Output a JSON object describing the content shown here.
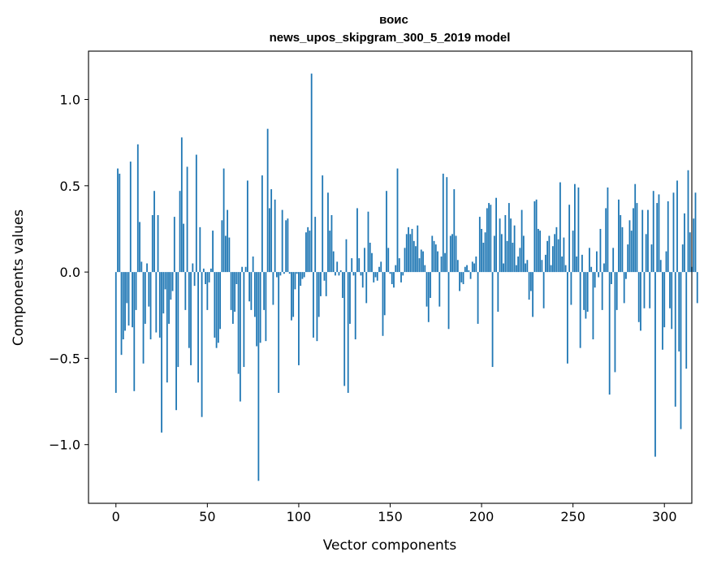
{
  "chart_data": {
    "type": "bar",
    "title": "воис",
    "subtitle": "news_upos_skipgram_300_5_2019 model",
    "xlabel": "Vector components",
    "ylabel": "Components values",
    "xlim": [
      -15,
      315
    ],
    "ylim": [
      -1.34,
      1.28
    ],
    "xticks": [
      0,
      50,
      100,
      150,
      200,
      250,
      300
    ],
    "yticks": [
      -1.0,
      -0.5,
      0.0,
      0.5,
      1.0
    ],
    "ytick_labels": [
      "−1.0",
      "−0.5",
      "0.0",
      "0.5",
      "1.0"
    ],
    "color": "#1f77b4",
    "grid": false,
    "values": [
      -0.7,
      0.6,
      0.57,
      -0.48,
      -0.39,
      -0.34,
      -0.18,
      -0.31,
      0.64,
      -0.32,
      -0.69,
      -0.22,
      0.74,
      0.29,
      0.06,
      -0.53,
      -0.3,
      0.05,
      -0.2,
      -0.39,
      0.33,
      0.47,
      -0.35,
      0.33,
      -0.38,
      -0.93,
      -0.24,
      -0.1,
      -0.64,
      -0.3,
      -0.16,
      -0.11,
      0.32,
      -0.8,
      -0.55,
      0.47,
      0.78,
      0.28,
      -0.22,
      0.61,
      -0.44,
      -0.54,
      0.05,
      -0.08,
      0.68,
      -0.64,
      0.26,
      -0.84,
      0.02,
      -0.07,
      -0.22,
      -0.06,
      0.02,
      0.24,
      -0.38,
      -0.44,
      -0.41,
      -0.33,
      0.3,
      0.6,
      0.21,
      0.36,
      0.2,
      -0.22,
      -0.3,
      -0.23,
      -0.07,
      -0.59,
      -0.75,
      0.03,
      -0.55,
      0.03,
      0.53,
      -0.17,
      -0.22,
      0.09,
      -0.26,
      -0.43,
      -1.21,
      -0.41,
      0.56,
      -0.22,
      -0.4,
      0.83,
      0.37,
      0.48,
      -0.19,
      0.42,
      -0.03,
      -0.7,
      -0.02,
      0.36,
      -0.01,
      0.3,
      0.31,
      -0.01,
      -0.28,
      -0.26,
      -0.1,
      -0.01,
      -0.54,
      -0.08,
      -0.04,
      -0.03,
      0.23,
      0.26,
      0.24,
      1.15,
      -0.38,
      0.32,
      -0.4,
      -0.26,
      -0.14,
      0.56,
      -0.05,
      -0.14,
      0.46,
      0.24,
      0.33,
      0.12,
      -0.02,
      0.06,
      -0.02,
      0.01,
      -0.15,
      -0.66,
      0.19,
      -0.7,
      -0.3,
      0.08,
      -0.02,
      -0.39,
      0.37,
      0.08,
      -0.02,
      -0.09,
      0.14,
      -0.18,
      0.35,
      0.17,
      0.11,
      -0.06,
      -0.03,
      -0.05,
      0.03,
      0.06,
      -0.37,
      -0.25,
      0.47,
      0.14,
      -0.01,
      -0.07,
      -0.09,
      0.04,
      0.6,
      0.08,
      -0.06,
      -0.02,
      0.14,
      0.22,
      0.26,
      0.22,
      0.25,
      0.18,
      0.15,
      0.27,
      0.08,
      0.13,
      0.12,
      0.04,
      -0.2,
      -0.29,
      -0.15,
      0.21,
      0.18,
      0.16,
      0.12,
      -0.2,
      0.09,
      0.57,
      0.11,
      0.55,
      -0.33,
      0.21,
      0.22,
      0.48,
      0.21,
      0.07,
      -0.11,
      -0.06,
      -0.07,
      0.03,
      0.04,
      0.01,
      -0.04,
      0.06,
      0.05,
      0.09,
      -0.3,
      0.32,
      0.25,
      0.17,
      0.23,
      0.37,
      0.4,
      0.39,
      -0.55,
      0.21,
      0.43,
      -0.23,
      0.31,
      0.22,
      0.05,
      0.33,
      0.18,
      0.4,
      0.31,
      0.17,
      0.27,
      0.04,
      0.09,
      0.14,
      0.36,
      0.21,
      0.05,
      0.07,
      -0.16,
      -0.11,
      -0.26,
      0.41,
      0.42,
      0.25,
      0.24,
      0.07,
      -0.21,
      0.1,
      0.18,
      0.21,
      0.04,
      0.15,
      0.22,
      0.26,
      0.19,
      0.52,
      0.09,
      0.2,
      0.04,
      -0.53,
      0.39,
      -0.19,
      0.24,
      0.51,
      0.09,
      0.49,
      -0.44,
      0.1,
      -0.22,
      -0.27,
      -0.23,
      0.14,
      0.03,
      -0.39,
      -0.09,
      0.12,
      -0.03,
      0.25,
      -0.22,
      0.05,
      0.37,
      0.49,
      -0.71,
      -0.07,
      0.14,
      -0.58,
      -0.22,
      0.42,
      0.33,
      0.26,
      -0.18,
      -0.04,
      0.16,
      0.3,
      0.24,
      0.37,
      0.51,
      0.4,
      -0.29,
      -0.34,
      0.36,
      -0.21,
      0.22,
      0.36,
      -0.21,
      0.16,
      0.47,
      -1.07,
      0.4,
      0.45,
      0.07,
      -0.45,
      -0.32,
      0.12,
      0.41,
      -0.21,
      -0.33,
      0.46,
      -0.78,
      0.53,
      -0.46,
      -0.91,
      0.16,
      0.34,
      -0.56,
      0.59,
      0.23,
      0.03,
      0.31,
      0.46,
      -0.18
    ]
  }
}
